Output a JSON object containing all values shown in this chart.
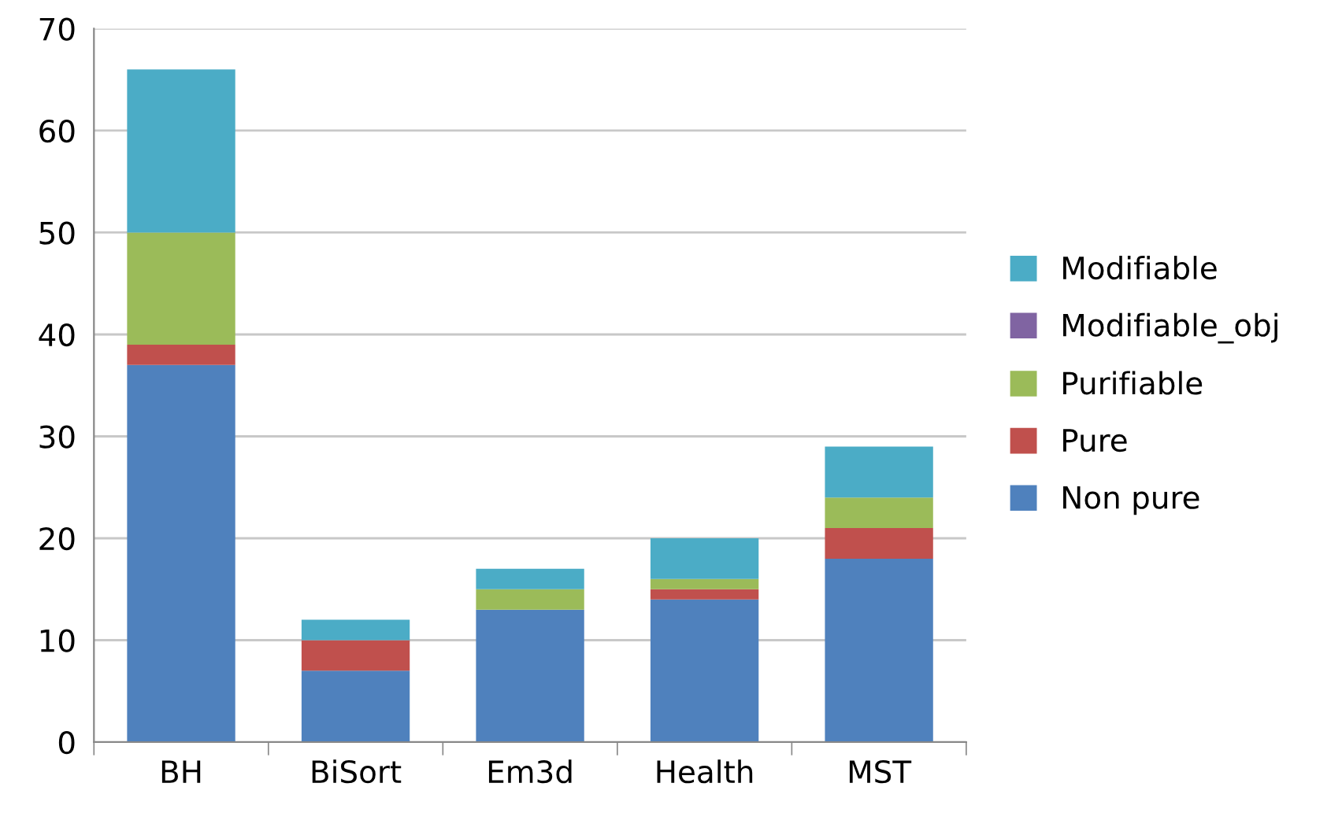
{
  "chart_data": {
    "type": "bar",
    "stacked": true,
    "categories": [
      "BH",
      "BiSort",
      "Em3d",
      "Health",
      "MST"
    ],
    "series": [
      {
        "name": "Non pure",
        "color": "#4f81bd",
        "values": [
          37,
          7,
          13,
          14,
          18
        ]
      },
      {
        "name": "Pure",
        "color": "#c0504d",
        "values": [
          2,
          3,
          0,
          1,
          3
        ]
      },
      {
        "name": "Purifiable",
        "color": "#9bbb59",
        "values": [
          11,
          0,
          2,
          1,
          3
        ]
      },
      {
        "name": "Modifiable_obj",
        "color": "#8064a2",
        "values": [
          0,
          0,
          0,
          0,
          0
        ]
      },
      {
        "name": "Modifiable",
        "color": "#4bacc6",
        "values": [
          16,
          2,
          2,
          4,
          5
        ]
      }
    ],
    "ylim": [
      0,
      70
    ],
    "yticks": [
      0,
      10,
      20,
      30,
      40,
      50,
      60,
      70
    ],
    "grid": "y",
    "legend": "right"
  }
}
